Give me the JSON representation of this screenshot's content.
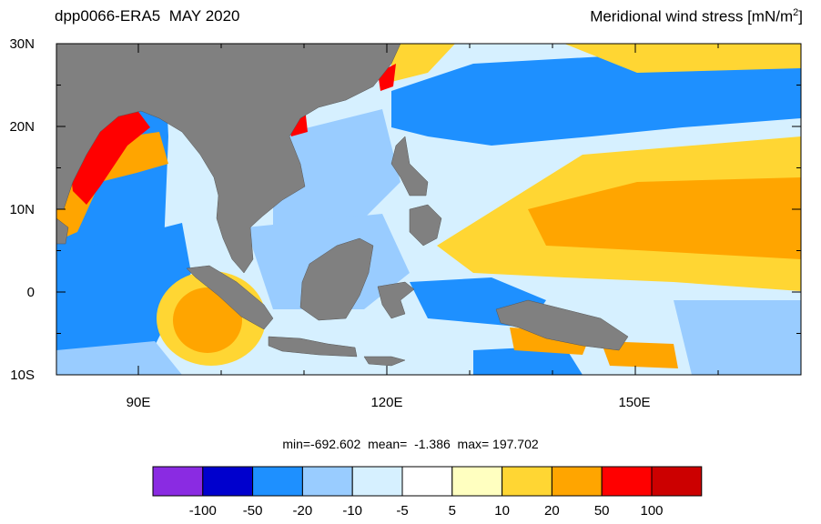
{
  "header": {
    "left_title": "dpp0066-ERA5  MAY 2020",
    "right_title": "Meridional wind stress [mN/m",
    "right_title_sup": "2",
    "right_title_end": "]"
  },
  "map": {
    "lat_labels": [
      "30N",
      "20N",
      "10N",
      "0",
      "10S"
    ],
    "lon_labels": [
      "90E",
      "120E",
      "150E"
    ],
    "land_color": "#808080"
  },
  "stats": {
    "text": "min=-692.602  mean=  -1.386  max= 197.702"
  },
  "colorbar": {
    "colors": [
      "#8a2be2",
      "#0000cd",
      "#1e90ff",
      "#99ccff",
      "#d6f0ff",
      "#ffffff",
      "#ffffc0",
      "#ffd633",
      "#ffa500",
      "#ff0000",
      "#cc0000"
    ],
    "labels": [
      "-100",
      "-50",
      "-20",
      "-10",
      "-5",
      "5",
      "10",
      "20",
      "50",
      "100"
    ]
  }
}
